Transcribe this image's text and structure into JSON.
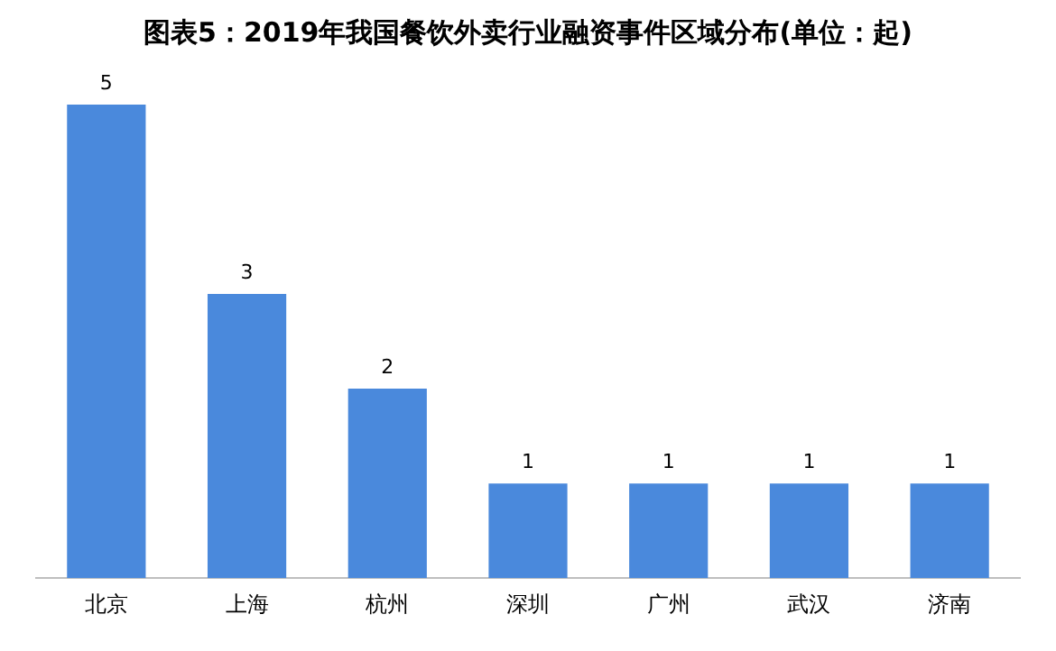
{
  "chart_data": {
    "type": "bar",
    "title": "图表5：2019年我国餐饮外卖行业融资事件区域分布(单位：起)",
    "categories": [
      "北京",
      "上海",
      "杭州",
      "深圳",
      "广州",
      "武汉",
      "济南"
    ],
    "values": [
      5,
      3,
      2,
      1,
      1,
      1,
      1
    ],
    "color": "#4a89dc",
    "data_labels": true,
    "grid": false,
    "legend": false
  }
}
